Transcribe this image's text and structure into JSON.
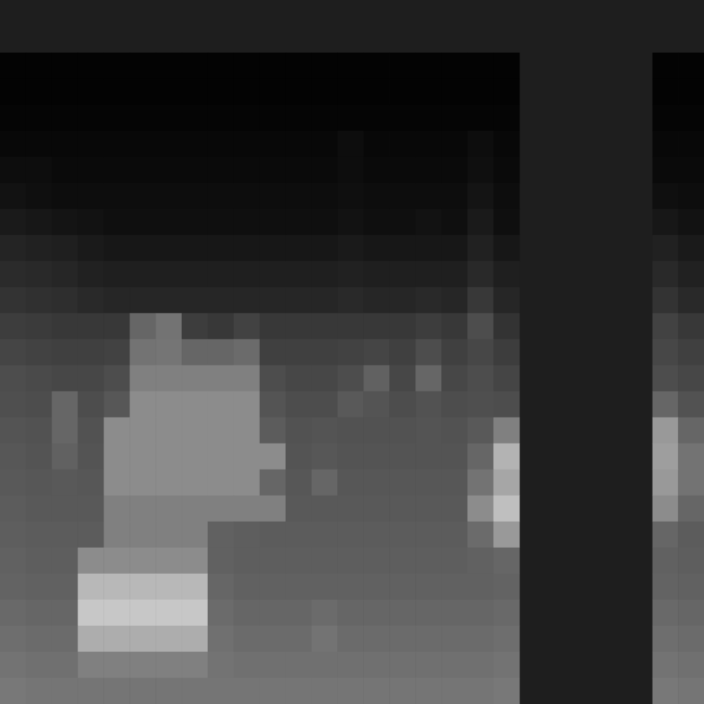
{
  "chart_data": [
    {
      "type": "heatmap",
      "tick_labels": false,
      "color_range": [
        0,
        1
      ],
      "cells": [
        [
          0.01,
          0.01,
          0.01,
          0.01,
          0.01,
          0.01,
          0.01,
          0.01,
          0.01,
          0.01,
          0.01,
          0.01,
          0.01,
          0.01,
          0.01,
          0.01,
          0.01,
          0.01,
          0.01,
          0.01
        ],
        [
          0.01,
          0.01,
          0.01,
          0.01,
          0.01,
          0.01,
          0.01,
          0.01,
          0.01,
          0.01,
          0.01,
          0.01,
          0.01,
          0.01,
          0.01,
          0.01,
          0.01,
          0.01,
          0.01,
          0.01
        ],
        [
          0.02,
          0.02,
          0.02,
          0.02,
          0.02,
          0.02,
          0.02,
          0.02,
          0.02,
          0.02,
          0.02,
          0.02,
          0.02,
          0.02,
          0.02,
          0.02,
          0.02,
          0.02,
          0.02,
          0.02
        ],
        [
          0.03,
          0.03,
          0.03,
          0.03,
          0.03,
          0.03,
          0.03,
          0.03,
          0.03,
          0.03,
          0.03,
          0.03,
          0.03,
          0.05,
          0.03,
          0.03,
          0.03,
          0.03,
          0.05,
          0.03
        ],
        [
          0.05,
          0.05,
          0.04,
          0.04,
          0.04,
          0.04,
          0.04,
          0.04,
          0.04,
          0.04,
          0.04,
          0.04,
          0.04,
          0.05,
          0.04,
          0.04,
          0.04,
          0.04,
          0.06,
          0.04
        ],
        [
          0.07,
          0.06,
          0.05,
          0.05,
          0.05,
          0.05,
          0.05,
          0.05,
          0.05,
          0.05,
          0.05,
          0.05,
          0.05,
          0.06,
          0.05,
          0.05,
          0.05,
          0.05,
          0.08,
          0.05
        ],
        [
          0.1,
          0.09,
          0.08,
          0.07,
          0.06,
          0.06,
          0.06,
          0.06,
          0.06,
          0.06,
          0.06,
          0.06,
          0.06,
          0.07,
          0.06,
          0.06,
          0.07,
          0.06,
          0.1,
          0.06
        ],
        [
          0.14,
          0.13,
          0.12,
          0.1,
          0.09,
          0.09,
          0.09,
          0.09,
          0.09,
          0.09,
          0.09,
          0.09,
          0.09,
          0.1,
          0.09,
          0.09,
          0.09,
          0.09,
          0.13,
          0.09
        ],
        [
          0.17,
          0.16,
          0.15,
          0.13,
          0.12,
          0.12,
          0.12,
          0.12,
          0.12,
          0.12,
          0.12,
          0.12,
          0.12,
          0.13,
          0.12,
          0.12,
          0.12,
          0.12,
          0.16,
          0.12
        ],
        [
          0.2,
          0.19,
          0.18,
          0.16,
          0.15,
          0.15,
          0.15,
          0.15,
          0.15,
          0.15,
          0.15,
          0.15,
          0.15,
          0.16,
          0.15,
          0.15,
          0.16,
          0.15,
          0.22,
          0.15
        ],
        [
          0.24,
          0.23,
          0.22,
          0.22,
          0.22,
          0.4,
          0.45,
          0.24,
          0.22,
          0.26,
          0.22,
          0.22,
          0.22,
          0.22,
          0.22,
          0.22,
          0.24,
          0.22,
          0.3,
          0.2
        ],
        [
          0.27,
          0.26,
          0.25,
          0.25,
          0.26,
          0.45,
          0.46,
          0.4,
          0.4,
          0.42,
          0.25,
          0.25,
          0.25,
          0.26,
          0.27,
          0.25,
          0.3,
          0.25,
          0.28,
          0.24
        ],
        [
          0.3,
          0.29,
          0.28,
          0.28,
          0.3,
          0.5,
          0.5,
          0.5,
          0.5,
          0.5,
          0.3,
          0.28,
          0.28,
          0.3,
          0.38,
          0.28,
          0.4,
          0.28,
          0.3,
          0.27
        ],
        [
          0.31,
          0.3,
          0.4,
          0.3,
          0.34,
          0.55,
          0.55,
          0.55,
          0.55,
          0.55,
          0.33,
          0.3,
          0.3,
          0.35,
          0.33,
          0.3,
          0.32,
          0.3,
          0.31,
          0.3
        ],
        [
          0.33,
          0.32,
          0.4,
          0.32,
          0.55,
          0.55,
          0.55,
          0.55,
          0.55,
          0.55,
          0.36,
          0.32,
          0.33,
          0.32,
          0.32,
          0.32,
          0.33,
          0.32,
          0.35,
          0.5
        ],
        [
          0.34,
          0.33,
          0.38,
          0.33,
          0.55,
          0.55,
          0.55,
          0.55,
          0.55,
          0.55,
          0.55,
          0.33,
          0.34,
          0.33,
          0.33,
          0.33,
          0.33,
          0.33,
          0.4,
          0.7
        ],
        [
          0.35,
          0.34,
          0.35,
          0.34,
          0.55,
          0.55,
          0.55,
          0.55,
          0.55,
          0.55,
          0.4,
          0.34,
          0.4,
          0.34,
          0.34,
          0.34,
          0.34,
          0.34,
          0.45,
          0.65
        ],
        [
          0.36,
          0.35,
          0.35,
          0.35,
          0.5,
          0.5,
          0.5,
          0.5,
          0.5,
          0.5,
          0.5,
          0.35,
          0.35,
          0.35,
          0.35,
          0.35,
          0.35,
          0.35,
          0.55,
          0.75
        ],
        [
          0.37,
          0.36,
          0.36,
          0.36,
          0.5,
          0.5,
          0.5,
          0.5,
          0.38,
          0.37,
          0.36,
          0.36,
          0.36,
          0.36,
          0.36,
          0.36,
          0.36,
          0.36,
          0.42,
          0.6
        ],
        [
          0.38,
          0.37,
          0.37,
          0.55,
          0.55,
          0.55,
          0.55,
          0.55,
          0.38,
          0.37,
          0.37,
          0.37,
          0.37,
          0.37,
          0.37,
          0.37,
          0.37,
          0.37,
          0.38,
          0.4
        ],
        [
          0.39,
          0.38,
          0.38,
          0.72,
          0.72,
          0.72,
          0.72,
          0.72,
          0.4,
          0.38,
          0.38,
          0.38,
          0.38,
          0.38,
          0.38,
          0.38,
          0.38,
          0.38,
          0.38,
          0.39
        ],
        [
          0.41,
          0.4,
          0.4,
          0.78,
          0.78,
          0.78,
          0.78,
          0.78,
          0.42,
          0.4,
          0.4,
          0.4,
          0.42,
          0.4,
          0.4,
          0.4,
          0.4,
          0.4,
          0.4,
          0.41
        ],
        [
          0.43,
          0.42,
          0.42,
          0.68,
          0.68,
          0.68,
          0.68,
          0.68,
          0.44,
          0.42,
          0.42,
          0.42,
          0.45,
          0.42,
          0.42,
          0.42,
          0.42,
          0.42,
          0.42,
          0.43
        ],
        [
          0.45,
          0.44,
          0.44,
          0.5,
          0.5,
          0.5,
          0.5,
          0.5,
          0.45,
          0.44,
          0.44,
          0.44,
          0.44,
          0.44,
          0.44,
          0.44,
          0.44,
          0.44,
          0.44,
          0.45
        ],
        [
          0.47,
          0.46,
          0.46,
          0.46,
          0.46,
          0.46,
          0.46,
          0.46,
          0.46,
          0.46,
          0.46,
          0.46,
          0.46,
          0.46,
          0.46,
          0.46,
          0.46,
          0.46,
          0.46,
          0.47
        ]
      ]
    },
    {
      "type": "heatmap",
      "tick_labels": false,
      "color_range": [
        0,
        1
      ],
      "cells": [
        [
          0.01,
          0.01
        ],
        [
          0.01,
          0.01
        ],
        [
          0.02,
          0.02
        ],
        [
          0.03,
          0.03
        ],
        [
          0.04,
          0.04
        ],
        [
          0.06,
          0.05
        ],
        [
          0.09,
          0.07
        ],
        [
          0.13,
          0.1
        ],
        [
          0.16,
          0.13
        ],
        [
          0.2,
          0.16
        ],
        [
          0.26,
          0.22
        ],
        [
          0.28,
          0.25
        ],
        [
          0.3,
          0.28
        ],
        [
          0.4,
          0.32
        ],
        [
          0.6,
          0.4
        ],
        [
          0.62,
          0.45
        ],
        [
          0.6,
          0.45
        ],
        [
          0.55,
          0.4
        ],
        [
          0.4,
          0.36
        ],
        [
          0.38,
          0.37
        ],
        [
          0.39,
          0.38
        ],
        [
          0.41,
          0.4
        ],
        [
          0.43,
          0.42
        ],
        [
          0.45,
          0.44
        ],
        [
          0.47,
          0.46
        ]
      ]
    }
  ]
}
